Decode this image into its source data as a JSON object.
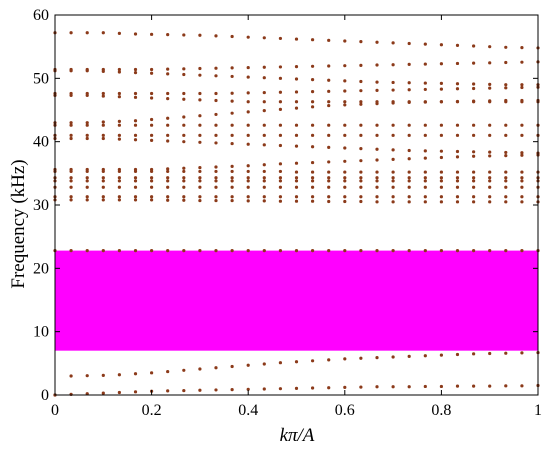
{
  "chart_data": {
    "type": "scatter",
    "xlabel": "kπ/A",
    "ylabel": "Frequency (kHz)",
    "xlim": [
      0,
      1
    ],
    "ylim": [
      0,
      60
    ],
    "xticks": [
      "0",
      "0.2",
      "0.4",
      "0.6",
      "0.8",
      "1"
    ],
    "yticks": [
      "0",
      "10",
      "20",
      "30",
      "40",
      "50",
      "60"
    ],
    "grid": false,
    "band_gap": {
      "from": 7.0,
      "to": 22.8,
      "color": "#ff00ff"
    },
    "marker_color": "#8b3a1a",
    "x": [
      0,
      0.0333,
      0.0667,
      0.1,
      0.1333,
      0.1667,
      0.2,
      0.2333,
      0.2667,
      0.3,
      0.3333,
      0.3667,
      0.4,
      0.4333,
      0.4667,
      0.5,
      0.5333,
      0.5667,
      0.6,
      0.6333,
      0.6667,
      0.7,
      0.7333,
      0.7667,
      0.8,
      0.8333,
      0.8667,
      0.9,
      0.9333,
      0.9667,
      1
    ],
    "series": [
      {
        "values": [
          0.0,
          0.1,
          0.2,
          0.3,
          0.4,
          0.5,
          0.6,
          0.65,
          0.7,
          0.75,
          0.8,
          0.85,
          0.9,
          0.95,
          1.0,
          1.05,
          1.1,
          1.15,
          1.2,
          1.25,
          1.3,
          1.3,
          1.3,
          1.35,
          1.35,
          1.4,
          1.4,
          1.4,
          1.45,
          1.45,
          1.5
        ]
      },
      {
        "values": [
          0.0,
          3.0,
          3.05,
          3.1,
          3.2,
          3.35,
          3.5,
          3.7,
          3.9,
          4.1,
          4.3,
          4.5,
          4.7,
          4.9,
          5.1,
          5.25,
          5.4,
          5.55,
          5.7,
          5.8,
          5.9,
          6.0,
          6.1,
          6.2,
          6.3,
          6.4,
          6.5,
          6.55,
          6.6,
          6.65,
          6.7
        ]
      },
      {
        "values": [
          22.8,
          22.8,
          22.8,
          22.8,
          22.8,
          22.8,
          22.8,
          22.8,
          22.8,
          22.8,
          22.8,
          22.8,
          22.8,
          22.8,
          22.8,
          22.8,
          22.8,
          22.8,
          22.8,
          22.8,
          22.8,
          22.8,
          22.8,
          22.8,
          22.8,
          22.8,
          22.8,
          22.8,
          22.8,
          22.8,
          22.8
        ]
      },
      {
        "values": [
          30.8,
          30.8,
          30.8,
          30.8,
          30.8,
          30.8,
          30.8,
          30.75,
          30.75,
          30.7,
          30.7,
          30.7,
          30.65,
          30.65,
          30.6,
          30.6,
          30.6,
          30.55,
          30.55,
          30.55,
          30.5,
          30.5,
          30.5,
          30.5,
          30.5,
          30.5,
          30.5,
          30.5,
          30.5,
          30.5,
          30.5
        ]
      },
      {
        "values": [
          31.3,
          31.3,
          31.3,
          31.3,
          31.3,
          31.3,
          31.3,
          31.3,
          31.3,
          31.3,
          31.3,
          31.3,
          31.3,
          31.3,
          31.3,
          31.3,
          31.3,
          31.3,
          31.3,
          31.3,
          31.3,
          31.3,
          31.3,
          31.3,
          31.3,
          31.3,
          31.3,
          31.3,
          31.3,
          31.3,
          31.3
        ]
      },
      {
        "values": [
          32.8,
          32.8,
          32.8,
          32.8,
          32.8,
          32.8,
          32.8,
          32.8,
          32.8,
          32.8,
          32.8,
          32.8,
          32.8,
          32.8,
          32.8,
          32.8,
          32.8,
          32.8,
          32.8,
          32.8,
          32.8,
          32.8,
          32.8,
          32.8,
          32.8,
          32.8,
          32.8,
          32.8,
          32.8,
          32.8,
          32.8
        ]
      },
      {
        "values": [
          33.8,
          33.8,
          33.8,
          33.8,
          33.8,
          33.8,
          33.8,
          33.8,
          33.8,
          33.8,
          33.8,
          33.8,
          33.8,
          33.8,
          33.8,
          33.8,
          33.8,
          33.8,
          33.8,
          33.8,
          33.8,
          33.8,
          33.8,
          33.8,
          33.8,
          33.8,
          33.8,
          33.8,
          33.8,
          33.8,
          33.8
        ]
      },
      {
        "values": [
          34.3,
          34.3,
          34.3,
          34.3,
          34.3,
          34.3,
          34.3,
          34.3,
          34.3,
          34.3,
          34.3,
          34.3,
          34.3,
          34.3,
          34.3,
          34.3,
          34.3,
          34.3,
          34.3,
          34.3,
          34.3,
          34.3,
          34.3,
          34.3,
          34.3,
          34.3,
          34.3,
          34.3,
          34.3,
          34.3,
          34.3
        ]
      },
      {
        "values": [
          35.3,
          35.3,
          35.3,
          35.3,
          35.3,
          35.3,
          35.3,
          35.3,
          35.3,
          35.3,
          35.3,
          35.3,
          35.3,
          35.3,
          35.3,
          35.2,
          35.2,
          35.2,
          35.2,
          35.2,
          35.2,
          35.2,
          35.2,
          35.2,
          35.2,
          35.2,
          35.2,
          35.2,
          35.2,
          35.2,
          35.2
        ]
      },
      {
        "values": [
          35.6,
          35.6,
          35.6,
          35.6,
          35.6,
          35.6,
          35.6,
          35.7,
          35.8,
          35.9,
          36.0,
          36.1,
          36.2,
          36.35,
          36.5,
          36.6,
          36.7,
          36.8,
          36.9,
          37.0,
          37.1,
          37.2,
          37.3,
          37.4,
          37.5,
          37.6,
          37.7,
          37.75,
          37.8,
          37.85,
          37.9
        ]
      },
      {
        "values": [
          40.5,
          40.5,
          40.5,
          40.5,
          40.4,
          40.3,
          40.2,
          40.1,
          40.0,
          39.9,
          39.8,
          39.7,
          39.6,
          39.5,
          39.4,
          39.3,
          39.2,
          39.1,
          39.0,
          38.9,
          38.8,
          38.7,
          38.6,
          38.55,
          38.5,
          38.45,
          38.4,
          38.35,
          38.3,
          38.25,
          38.2
        ]
      },
      {
        "values": [
          41.0,
          41.0,
          41.0,
          41.0,
          41.0,
          41.0,
          41.0,
          41.0,
          41.0,
          41.0,
          41.0,
          41.0,
          41.0,
          41.0,
          41.0,
          41.0,
          41.0,
          41.0,
          41.0,
          41.0,
          41.0,
          41.0,
          41.0,
          41.0,
          41.0,
          41.0,
          41.0,
          41.0,
          41.0,
          41.0,
          41.0
        ]
      },
      {
        "values": [
          42.6,
          42.6,
          42.6,
          42.6,
          42.6,
          42.6,
          42.6,
          42.6,
          42.6,
          42.6,
          42.6,
          42.6,
          42.6,
          42.6,
          42.6,
          42.6,
          42.6,
          42.6,
          42.6,
          42.6,
          42.6,
          42.6,
          42.6,
          42.6,
          42.6,
          42.6,
          42.6,
          42.6,
          42.6,
          42.6,
          42.6
        ]
      },
      {
        "values": [
          43.0,
          43.0,
          43.0,
          43.1,
          43.2,
          43.3,
          43.5,
          43.7,
          43.9,
          44.1,
          44.3,
          44.5,
          44.7,
          44.9,
          45.1,
          45.3,
          45.5,
          45.7,
          45.8,
          45.9,
          46.0,
          46.1,
          46.2,
          46.25,
          46.3,
          46.35,
          46.4,
          46.45,
          46.5,
          46.5,
          46.5
        ]
      },
      {
        "values": [
          47.3,
          47.3,
          47.3,
          47.2,
          47.1,
          47.0,
          46.9,
          46.8,
          46.7,
          46.6,
          46.5,
          46.4,
          46.3,
          46.3,
          46.3,
          46.3,
          46.3,
          46.3,
          46.3,
          46.3,
          46.3,
          46.3,
          46.3,
          46.3,
          46.3,
          46.3,
          46.3,
          46.3,
          46.3,
          46.3,
          46.3
        ]
      },
      {
        "values": [
          47.6,
          47.6,
          47.6,
          47.6,
          47.6,
          47.6,
          47.6,
          47.6,
          47.6,
          47.6,
          47.6,
          47.65,
          47.7,
          47.75,
          47.8,
          47.85,
          47.9,
          47.95,
          48.0,
          48.05,
          48.1,
          48.15,
          48.2,
          48.25,
          48.3,
          48.35,
          48.4,
          48.45,
          48.5,
          48.55,
          48.6
        ]
      },
      {
        "values": [
          51.2,
          51.2,
          51.2,
          51.1,
          51.0,
          50.9,
          50.8,
          50.7,
          50.6,
          50.5,
          50.4,
          50.3,
          50.2,
          50.1,
          50.0,
          49.9,
          49.8,
          49.7,
          49.6,
          49.5,
          49.4,
          49.35,
          49.3,
          49.25,
          49.2,
          49.15,
          49.1,
          49.05,
          49.0,
          49.0,
          49.0
        ]
      },
      {
        "values": [
          51.4,
          51.4,
          51.4,
          51.4,
          51.4,
          51.4,
          51.4,
          51.45,
          51.5,
          51.55,
          51.6,
          51.65,
          51.7,
          51.75,
          51.8,
          51.85,
          51.9,
          51.95,
          52.0,
          52.05,
          52.1,
          52.15,
          52.2,
          52.25,
          52.3,
          52.35,
          52.4,
          52.45,
          52.5,
          52.55,
          52.6
        ]
      },
      {
        "values": [
          57.2,
          57.2,
          57.2,
          57.2,
          57.1,
          57.0,
          56.95,
          56.9,
          56.85,
          56.8,
          56.7,
          56.6,
          56.5,
          56.4,
          56.3,
          56.2,
          56.1,
          56.0,
          55.9,
          55.8,
          55.7,
          55.6,
          55.5,
          55.4,
          55.3,
          55.2,
          55.1,
          55.0,
          54.9,
          54.85,
          54.8
        ]
      }
    ]
  }
}
